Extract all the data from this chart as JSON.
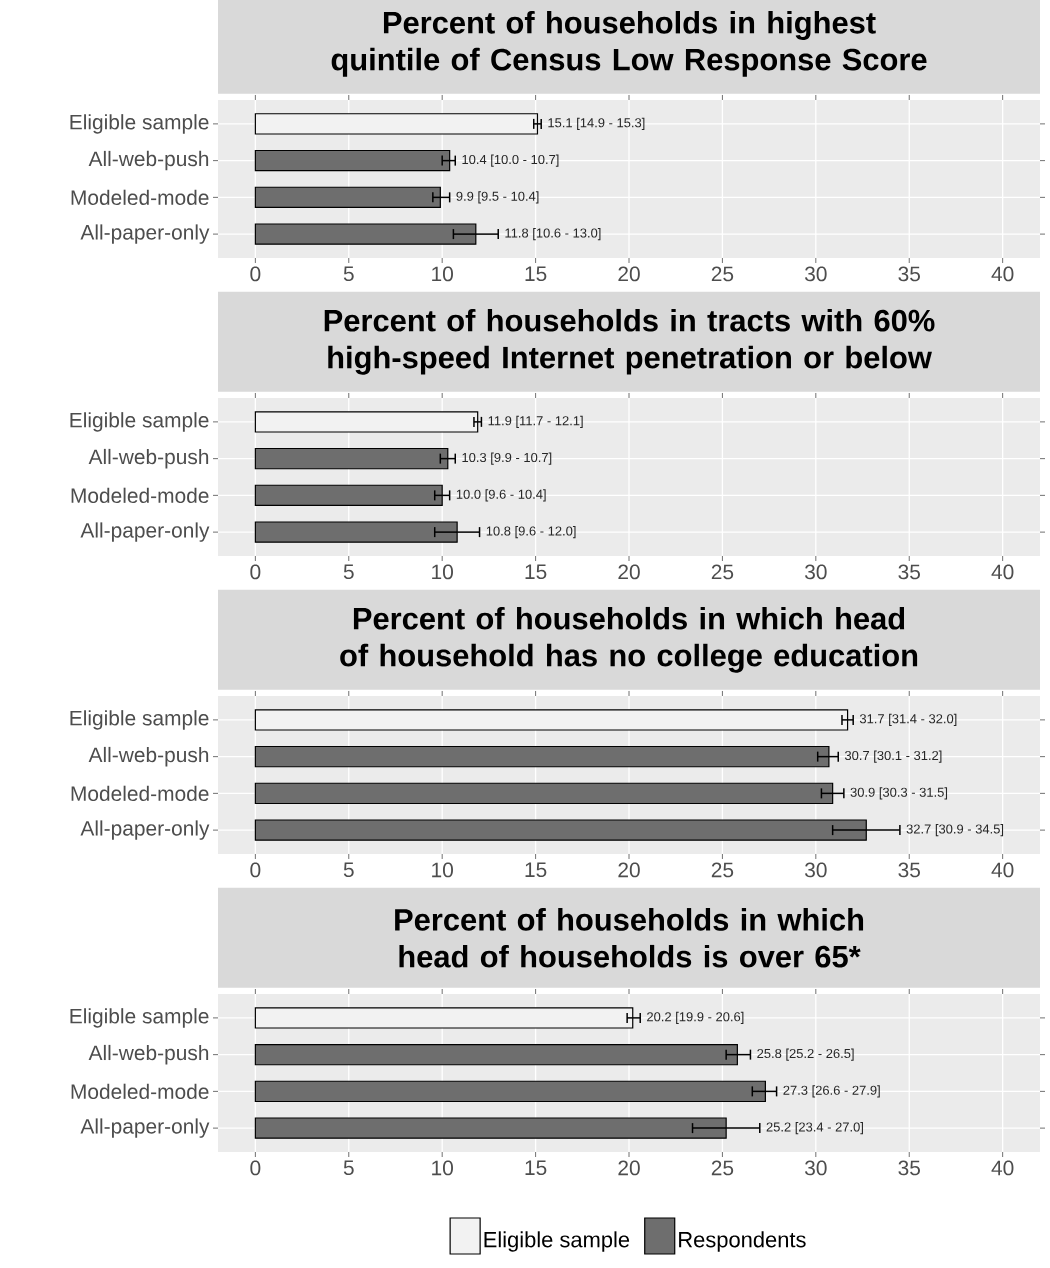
{
  "chart_data": [
    {
      "type": "bar",
      "orientation": "horizontal",
      "title": "Percent of households in highest quintile of Census Low Response Score",
      "categories": [
        "Eligible sample",
        "All-web-push",
        "Modeled-mode",
        "All-paper-only"
      ],
      "series": [
        {
          "color": "#f2f2f2",
          "values": [
            15.1,
            null,
            null,
            null
          ],
          "errors": [
            [
              14.9,
              15.3
            ],
            null,
            null,
            null
          ],
          "value_labels": [
            "15.1 [14.9 - 15.3]",
            null,
            null,
            null
          ]
        },
        {
          "color": "#6e6e6e",
          "values": [
            null,
            10.4,
            9.9,
            11.8
          ],
          "errors": [
            null,
            [
              10.0,
              10.7
            ],
            [
              9.5,
              10.4
            ],
            [
              10.6,
              13.0
            ]
          ],
          "value_labels": [
            null,
            "10.4 [10.0 - 10.7]",
            "9.9 [9.5 - 10.4]",
            "11.8 [10.6 - 13.0]"
          ]
        }
      ],
      "xlim": [
        -2,
        42
      ],
      "xticks": [
        0,
        5,
        10,
        15,
        20,
        25,
        30,
        35,
        40
      ],
      "grid": true
    },
    {
      "type": "bar",
      "orientation": "horizontal",
      "title": "Percent of households in tracts with 60% high-speed Internet penetration or below",
      "categories": [
        "Eligible sample",
        "All-web-push",
        "Modeled-mode",
        "All-paper-only"
      ],
      "series": [
        {
          "color": "#f2f2f2",
          "values": [
            11.9,
            null,
            null,
            null
          ],
          "errors": [
            [
              11.7,
              12.1
            ],
            null,
            null,
            null
          ],
          "value_labels": [
            "11.9 [11.7 - 12.1]",
            null,
            null,
            null
          ]
        },
        {
          "color": "#6e6e6e",
          "values": [
            null,
            10.3,
            10.0,
            10.8
          ],
          "errors": [
            null,
            [
              9.9,
              10.7
            ],
            [
              9.6,
              10.4
            ],
            [
              9.6,
              12.0
            ]
          ],
          "value_labels": [
            null,
            "10.3 [9.9 - 10.7]",
            "10.0 [9.6 - 10.4]",
            "10.8 [9.6 - 12.0]"
          ]
        }
      ],
      "xlim": [
        -2,
        42
      ],
      "xticks": [
        0,
        5,
        10,
        15,
        20,
        25,
        30,
        35,
        40
      ],
      "grid": true
    },
    {
      "type": "bar",
      "orientation": "horizontal",
      "title": "Percent of households in which head of household has no college education",
      "categories": [
        "Eligible sample",
        "All-web-push",
        "Modeled-mode",
        "All-paper-only"
      ],
      "series": [
        {
          "color": "#f2f2f2",
          "values": [
            31.7,
            null,
            null,
            null
          ],
          "errors": [
            [
              31.4,
              32.0
            ],
            null,
            null,
            null
          ],
          "value_labels": [
            "31.7 [31.4 - 32.0]",
            null,
            null,
            null
          ]
        },
        {
          "color": "#6e6e6e",
          "values": [
            null,
            30.7,
            30.9,
            32.7
          ],
          "errors": [
            null,
            [
              30.1,
              31.2
            ],
            [
              30.3,
              31.5
            ],
            [
              30.9,
              34.5
            ]
          ],
          "value_labels": [
            null,
            "30.7 [30.1 - 31.2]",
            "30.9 [30.3 - 31.5]",
            "32.7 [30.9 - 34.5]"
          ]
        }
      ],
      "xlim": [
        -2,
        42
      ],
      "xticks": [
        0,
        5,
        10,
        15,
        20,
        25,
        30,
        35,
        40
      ],
      "grid": true
    },
    {
      "type": "bar",
      "orientation": "horizontal",
      "title": "Percent of households in which head of households is over 65*",
      "categories": [
        "Eligible sample",
        "All-web-push",
        "Modeled-mode",
        "All-paper-only"
      ],
      "series": [
        {
          "name": "Eligible sample",
          "color": "#f2f2f2",
          "values": [
            20.2,
            null,
            null,
            null
          ],
          "errors": [
            [
              19.9,
              20.6
            ],
            null,
            null,
            null
          ],
          "value_labels": [
            "20.2 [19.9 - 20.6]",
            null,
            null,
            null
          ]
        },
        {
          "name": "Respondents",
          "color": "#6e6e6e",
          "values": [
            null,
            25.8,
            27.3,
            25.2
          ],
          "errors": [
            null,
            [
              25.2,
              26.5
            ],
            [
              26.6,
              27.9
            ],
            [
              23.4,
              27.0
            ]
          ],
          "value_labels": [
            null,
            "25.8 [25.2 - 26.5]",
            "27.3 [26.6 - 27.9]",
            "25.2 [23.4 - 27.0]"
          ]
        }
      ],
      "xlim": [
        -2,
        42
      ],
      "xticks": [
        0,
        5,
        10,
        15,
        20,
        25,
        30,
        35,
        40
      ],
      "grid": true,
      "legend": "bottom"
    }
  ]
}
